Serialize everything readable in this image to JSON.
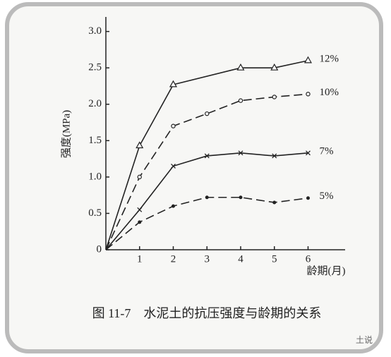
{
  "chart_data": {
    "type": "line",
    "y_label": "强度(MPa)",
    "x_label": "龄期(月)",
    "caption": "图 11-7　水泥土的抗压强度与龄期的关系",
    "watermark": "土说",
    "xlim": [
      0,
      7.1
    ],
    "ylim": [
      0,
      3.2
    ],
    "xticks": [
      1,
      2,
      3,
      4,
      5,
      6
    ],
    "yticks": [
      0,
      0.5,
      {
        "value": 1.0,
        "label": "1.0"
      },
      1.5,
      {
        "value": 2.0,
        "label": "2.0"
      },
      2.5,
      {
        "value": 3.0,
        "label": "3.0"
      }
    ],
    "series": [
      {
        "name": "12%",
        "color": "#222",
        "dash": false,
        "marker": "triangle",
        "x": [
          0,
          1,
          2,
          4,
          5,
          6
        ],
        "values": [
          0,
          1.43,
          2.27,
          2.5,
          2.5,
          2.6
        ]
      },
      {
        "name": "10%",
        "color": "#222",
        "dash": true,
        "marker": "circle",
        "x": [
          0,
          1,
          2,
          3,
          4,
          5,
          6
        ],
        "values": [
          0,
          1.0,
          1.7,
          1.87,
          2.05,
          2.1,
          2.14
        ]
      },
      {
        "name": "7%",
        "color": "#222",
        "dash": false,
        "marker": "cross",
        "x": [
          0,
          1,
          2,
          3,
          4,
          5,
          6
        ],
        "values": [
          0,
          0.55,
          1.15,
          1.29,
          1.33,
          1.29,
          1.33
        ]
      },
      {
        "name": "5%",
        "color": "#222",
        "dash": true,
        "marker": "dot",
        "x": [
          0,
          1,
          2,
          3,
          4,
          5,
          6
        ],
        "values": [
          0,
          0.38,
          0.6,
          0.72,
          0.72,
          0.65,
          0.71
        ]
      }
    ]
  }
}
